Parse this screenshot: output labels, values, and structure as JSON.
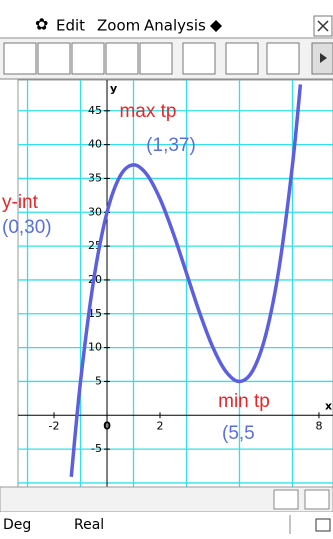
{
  "menu": {
    "items": [
      "Edit",
      "Zoom",
      "Analysis"
    ]
  },
  "status": {
    "angle": "Deg",
    "mode": "Real"
  },
  "chart_data": {
    "type": "line",
    "x_label": "x",
    "y_label": "y",
    "x": [
      -1.35,
      -1,
      -0.5,
      0,
      0.5,
      1,
      1.5,
      2,
      2.5,
      3,
      3.5,
      4,
      4.5,
      5,
      5.5,
      6,
      6.5,
      7,
      7.3
    ],
    "series": [
      {
        "color": "#5b5fe0",
        "values": [
          -9.1,
          5,
          20.1,
          30,
          35.4,
          37,
          35.6,
          32,
          26.9,
          21,
          15.1,
          10,
          6.4,
          5,
          6.6,
          12,
          21.9,
          37,
          48.9
        ]
      }
    ],
    "xlim": [
      -3.36,
      8.53
    ],
    "ylim": [
      -10.6,
      49.55
    ],
    "xticks": [
      -2,
      0,
      2,
      8
    ],
    "yticks": [
      -5,
      5,
      10,
      15,
      20,
      25,
      30,
      35,
      40,
      45
    ],
    "xgrid": [
      -3,
      -1,
      1,
      3,
      5,
      7
    ],
    "ygrid": [
      -10,
      -5,
      5,
      10,
      15,
      20,
      25,
      30,
      35,
      40,
      45
    ],
    "grid_color": "#33e0e8",
    "annotations": {
      "max_label": "max tp",
      "max_point": "(1,37)",
      "yint_label": "y-int",
      "yint_point": "(0,30)",
      "min_label": "min tp",
      "min_point": "(5,5"
    }
  }
}
